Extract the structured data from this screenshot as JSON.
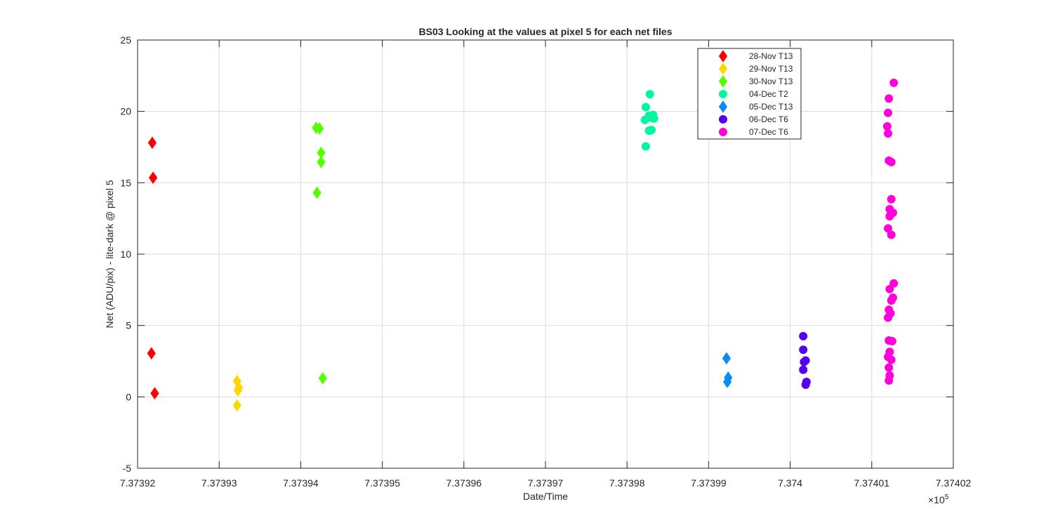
{
  "chart_data": {
    "type": "scatter",
    "title": "BS03  Looking at the values at pixel 5 for each net files",
    "xlabel": "Date/Time",
    "ylabel": "Net (ADU/pix) - lite-dark @ pixel 5",
    "x_multiplier_label": "×10",
    "x_multiplier_exponent": "5",
    "xlim": [
      737392,
      737402
    ],
    "ylim": [
      -5,
      25
    ],
    "x_tick_values": [
      737392,
      737393,
      737394,
      737395,
      737396,
      737397,
      737398,
      737399,
      737400,
      737401,
      737402
    ],
    "x_tick_labels": [
      "7.37392",
      "7.37393",
      "7.37394",
      "7.37395",
      "7.37396",
      "7.37397",
      "7.37398",
      "7.37399",
      "7.374",
      "7.37401",
      "7.37402"
    ],
    "y_tick_values": [
      -5,
      0,
      5,
      10,
      15,
      20,
      25
    ],
    "y_tick_labels": [
      "-5",
      "0",
      "5",
      "10",
      "15",
      "20",
      "25"
    ],
    "grid": true,
    "legend_position": "top-right",
    "series": [
      {
        "name": "28-Nov T13",
        "marker": "diamond",
        "color": "#ff0000",
        "points": [
          [
            737392.18,
            17.8
          ],
          [
            737392.19,
            15.35
          ],
          [
            737392.17,
            3.05
          ],
          [
            737392.21,
            0.25
          ]
        ]
      },
      {
        "name": "29-Nov T13",
        "marker": "diamond",
        "color": "#ffd700",
        "points": [
          [
            737393.22,
            1.1
          ],
          [
            737393.24,
            0.65
          ],
          [
            737393.23,
            0.45
          ],
          [
            737393.22,
            -0.6
          ]
        ]
      },
      {
        "name": "30-Nov T13",
        "marker": "diamond",
        "color": "#55ff00",
        "points": [
          [
            737394.19,
            18.85
          ],
          [
            737394.23,
            18.8
          ],
          [
            737394.25,
            17.1
          ],
          [
            737394.25,
            16.45
          ],
          [
            737394.2,
            14.3
          ],
          [
            737394.27,
            1.3
          ]
        ]
      },
      {
        "name": "04-Dec T2",
        "marker": "circle",
        "color": "#00f7a0",
        "points": [
          [
            737398.28,
            21.2
          ],
          [
            737398.23,
            20.3
          ],
          [
            737398.32,
            19.75
          ],
          [
            737398.27,
            19.7
          ],
          [
            737398.3,
            19.55
          ],
          [
            737398.22,
            19.4
          ],
          [
            737398.33,
            19.5
          ],
          [
            737398.3,
            18.7
          ],
          [
            737398.27,
            18.65
          ],
          [
            737398.23,
            17.55
          ]
        ]
      },
      {
        "name": "05-Dec T13",
        "marker": "diamond",
        "color": "#0a8cf5",
        "points": [
          [
            737399.22,
            2.7
          ],
          [
            737399.24,
            1.35
          ],
          [
            737399.23,
            1.05
          ]
        ]
      },
      {
        "name": "06-Dec T6",
        "marker": "circle",
        "color": "#5500ee",
        "points": [
          [
            737400.16,
            4.25
          ],
          [
            737400.16,
            3.3
          ],
          [
            737400.19,
            2.55
          ],
          [
            737400.17,
            2.45
          ],
          [
            737400.16,
            1.9
          ],
          [
            737400.2,
            1.05
          ],
          [
            737400.19,
            0.85
          ]
        ]
      },
      {
        "name": "07-Dec T6",
        "marker": "circle",
        "color": "#ff00dd",
        "points": [
          [
            737401.27,
            22.0
          ],
          [
            737401.21,
            20.9
          ],
          [
            737401.2,
            19.9
          ],
          [
            737401.19,
            18.95
          ],
          [
            737401.2,
            18.45
          ],
          [
            737401.21,
            16.55
          ],
          [
            737401.24,
            16.45
          ],
          [
            737401.24,
            13.85
          ],
          [
            737401.22,
            13.15
          ],
          [
            737401.26,
            12.9
          ],
          [
            737401.22,
            12.65
          ],
          [
            737401.2,
            11.8
          ],
          [
            737401.24,
            11.35
          ],
          [
            737401.27,
            7.95
          ],
          [
            737401.22,
            7.55
          ],
          [
            737401.26,
            6.95
          ],
          [
            737401.24,
            6.75
          ],
          [
            737401.21,
            6.1
          ],
          [
            737401.23,
            5.85
          ],
          [
            737401.2,
            5.55
          ],
          [
            737401.21,
            3.95
          ],
          [
            737401.25,
            3.9
          ],
          [
            737401.22,
            3.15
          ],
          [
            737401.2,
            2.8
          ],
          [
            737401.24,
            2.6
          ],
          [
            737401.21,
            2.05
          ],
          [
            737401.22,
            1.5
          ],
          [
            737401.21,
            1.15
          ]
        ]
      }
    ]
  }
}
